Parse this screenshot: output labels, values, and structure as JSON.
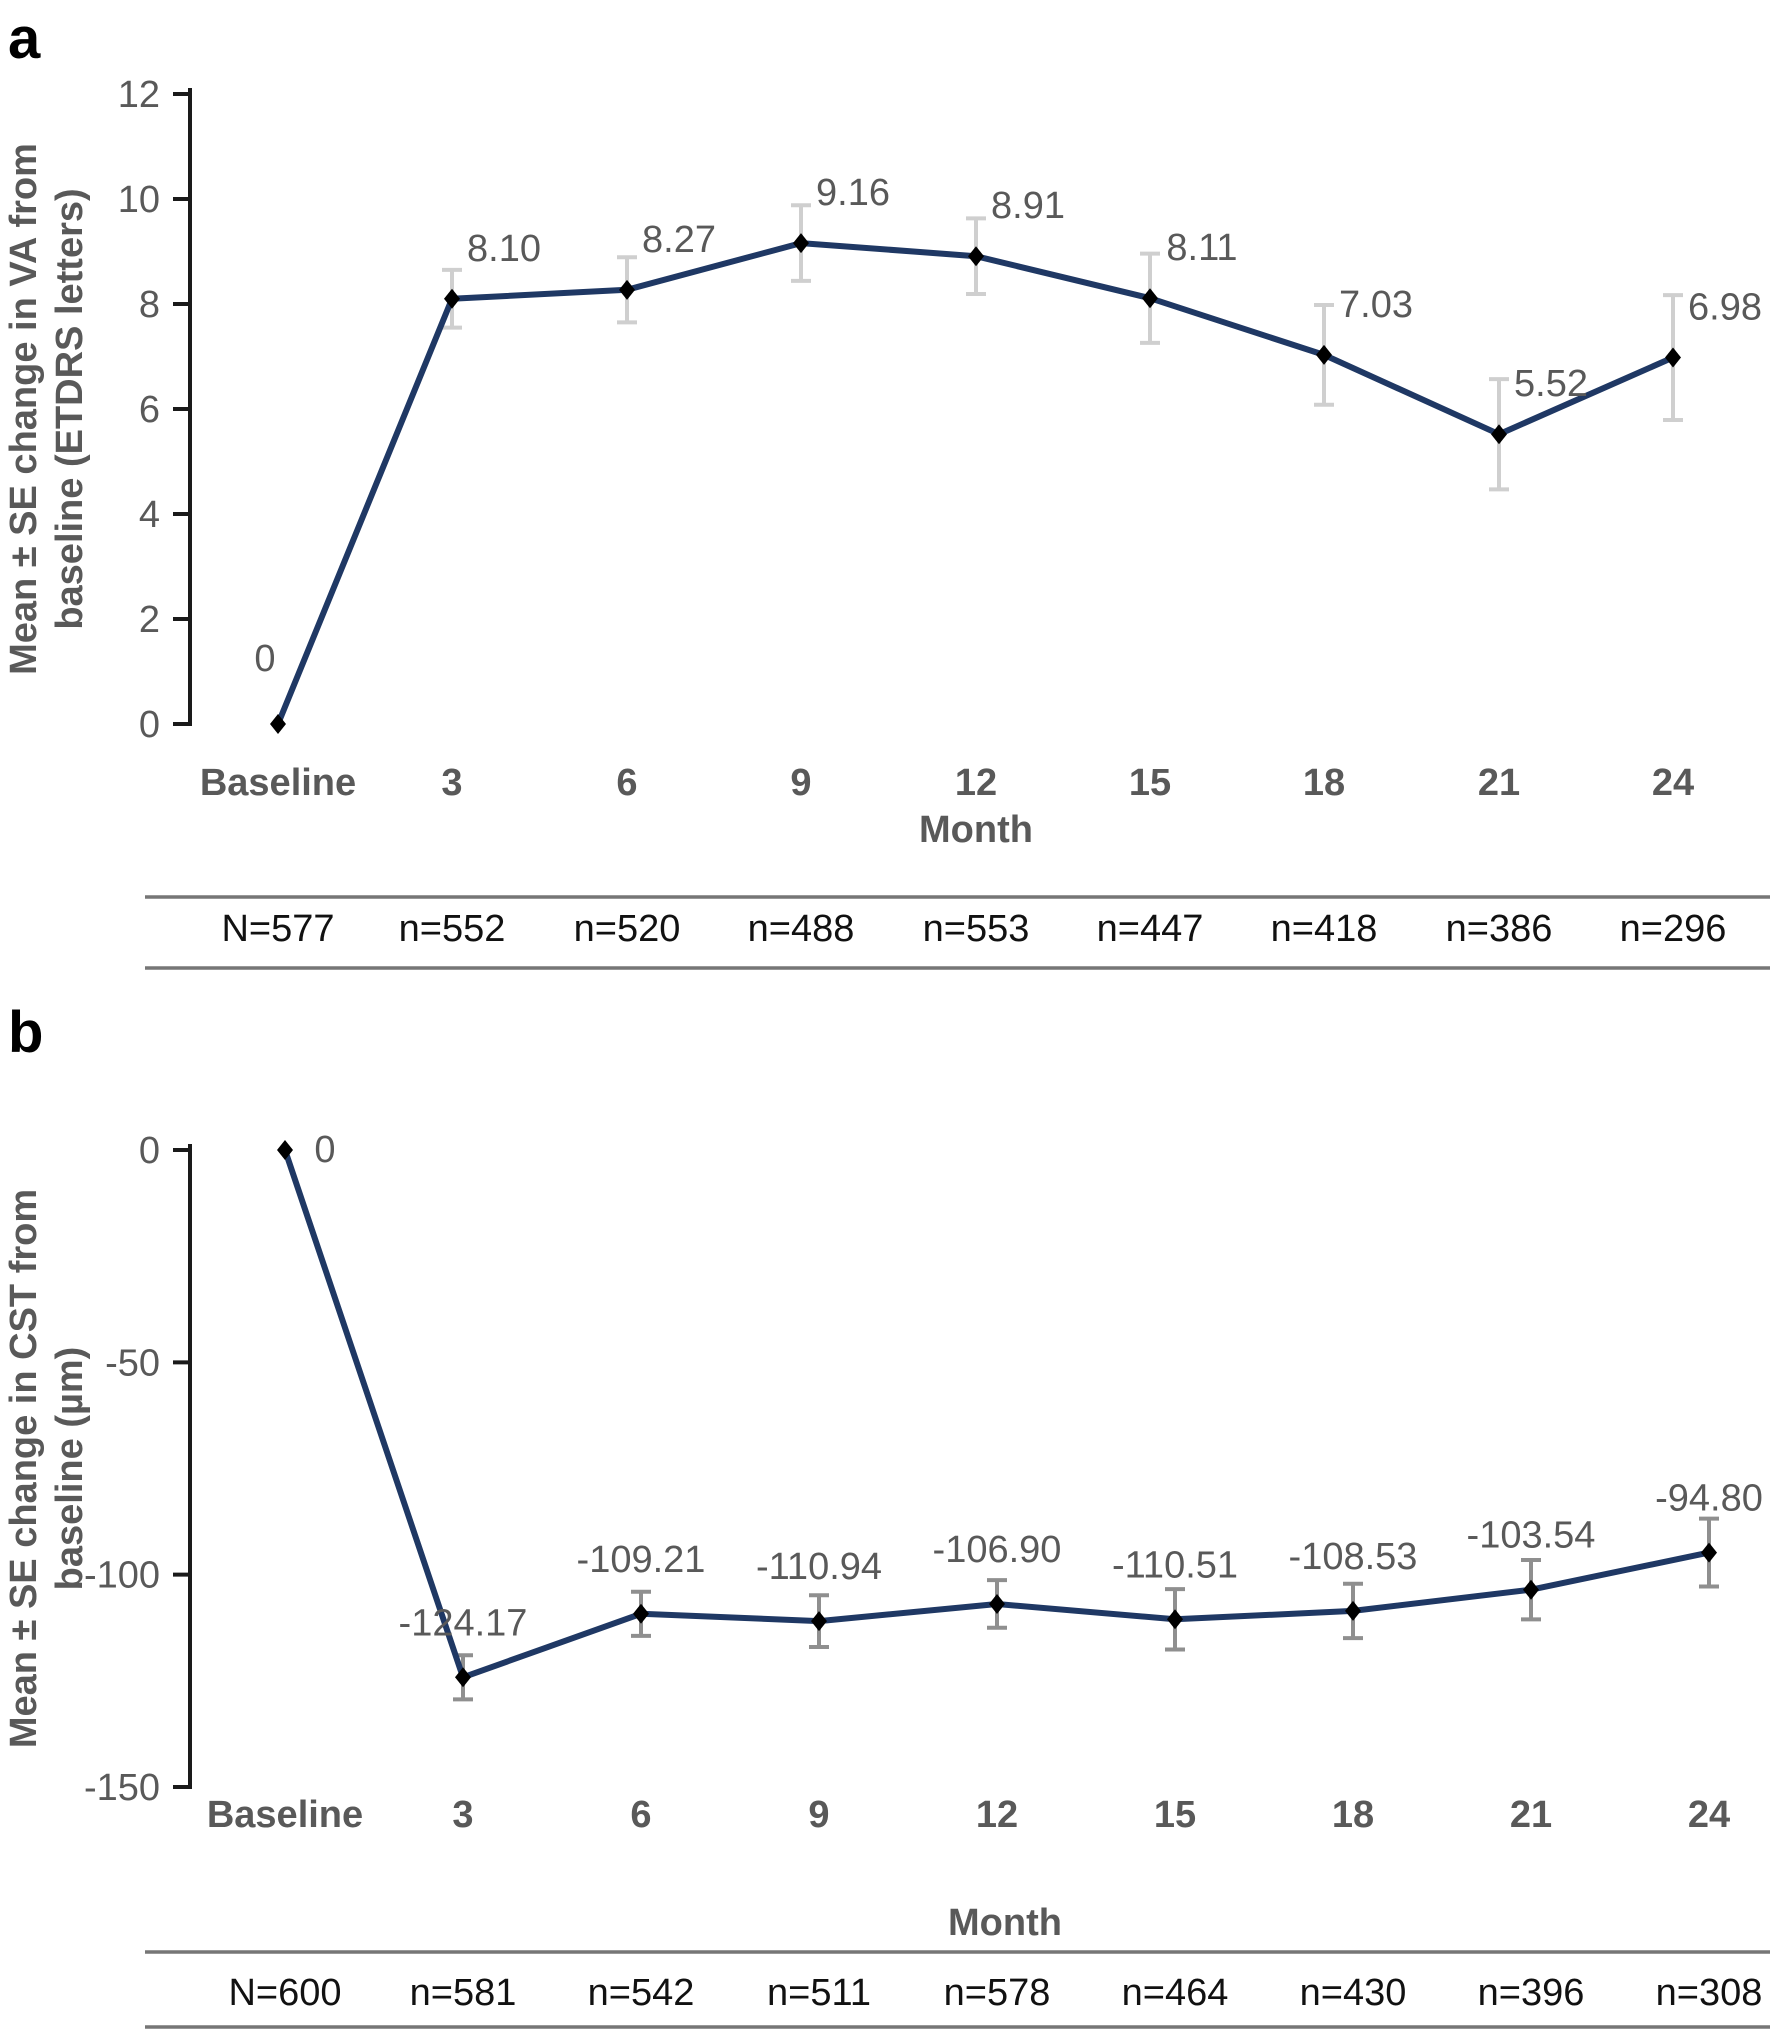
{
  "page": {
    "background": "#ffffff"
  },
  "chart_data": [
    {
      "type": "line",
      "panel_label": "a",
      "title": "",
      "x": [
        "Baseline",
        "3",
        "6",
        "9",
        "12",
        "15",
        "18",
        "21",
        "24"
      ],
      "xlabel": "Month",
      "ylabel": "Mean ± SE change in VA from baseline (ETDRS letters)",
      "ylabel_lines": [
        "Mean ± SE change in VA from",
        "baseline (ETDRS letters)"
      ],
      "ylim": [
        0,
        12
      ],
      "yticks": [
        12,
        10,
        8,
        6,
        4,
        2,
        0
      ],
      "grid": false,
      "legend": "none",
      "marker": "diamond",
      "series": [
        {
          "name": "Mean change in VA (ETDRS letters)",
          "values": [
            0,
            8.1,
            8.27,
            9.16,
            8.91,
            8.11,
            7.03,
            5.52,
            6.98
          ],
          "se_est": [
            0,
            0.55,
            0.62,
            0.72,
            0.72,
            0.85,
            0.95,
            1.05,
            1.19
          ],
          "data_labels": [
            "0",
            "8.10",
            "8.27",
            "9.16",
            "8.91",
            "8.11",
            "7.03",
            "5.52",
            "6.98"
          ]
        }
      ],
      "n_row": [
        "N=577",
        "n=552",
        "n=520",
        "n=488",
        "n=553",
        "n=447",
        "n=418",
        "n=386",
        "n=296"
      ]
    },
    {
      "type": "line",
      "panel_label": "b",
      "title": "",
      "x": [
        "Baseline",
        "3",
        "6",
        "9",
        "12",
        "15",
        "18",
        "21",
        "24"
      ],
      "xlabel": "Month",
      "ylabel": "Mean ± SE change in CST from baseline (µm)",
      "ylabel_lines": [
        "Mean ± SE change in CST from",
        "baseline (µm)"
      ],
      "ylim": [
        -150,
        0
      ],
      "yticks": [
        0,
        -50,
        -100,
        -150
      ],
      "grid": false,
      "legend": "none",
      "marker": "diamond",
      "series": [
        {
          "name": "Mean change in CST (µm)",
          "values": [
            0,
            -124.17,
            -109.21,
            -110.94,
            -106.9,
            -110.51,
            -108.53,
            -103.54,
            -94.8
          ],
          "se_est": [
            0,
            5.2,
            5.2,
            6.1,
            5.6,
            7.1,
            6.4,
            7.0,
            8.0
          ],
          "data_labels": [
            "0",
            "-124.17",
            "-109.21",
            "-110.94",
            "-106.90",
            "-110.51",
            "-108.53",
            "-103.54",
            "-94.80"
          ]
        }
      ],
      "n_row": [
        "N=600",
        "n=581",
        "n=542",
        "n=511",
        "n=578",
        "n=464",
        "n=430",
        "n=396",
        "n=308"
      ]
    }
  ],
  "styles": {
    "line_color": "#1f3864",
    "marker_color": "#000000",
    "error_bar_colors": [
      "#cfcfcf",
      "#8f8f8f"
    ],
    "text_gray": "#595959",
    "axis_color": "#1a1a1a",
    "table_rule_color": "#767676",
    "n_text_color": "#111111",
    "panel_label_color": "#000000"
  }
}
